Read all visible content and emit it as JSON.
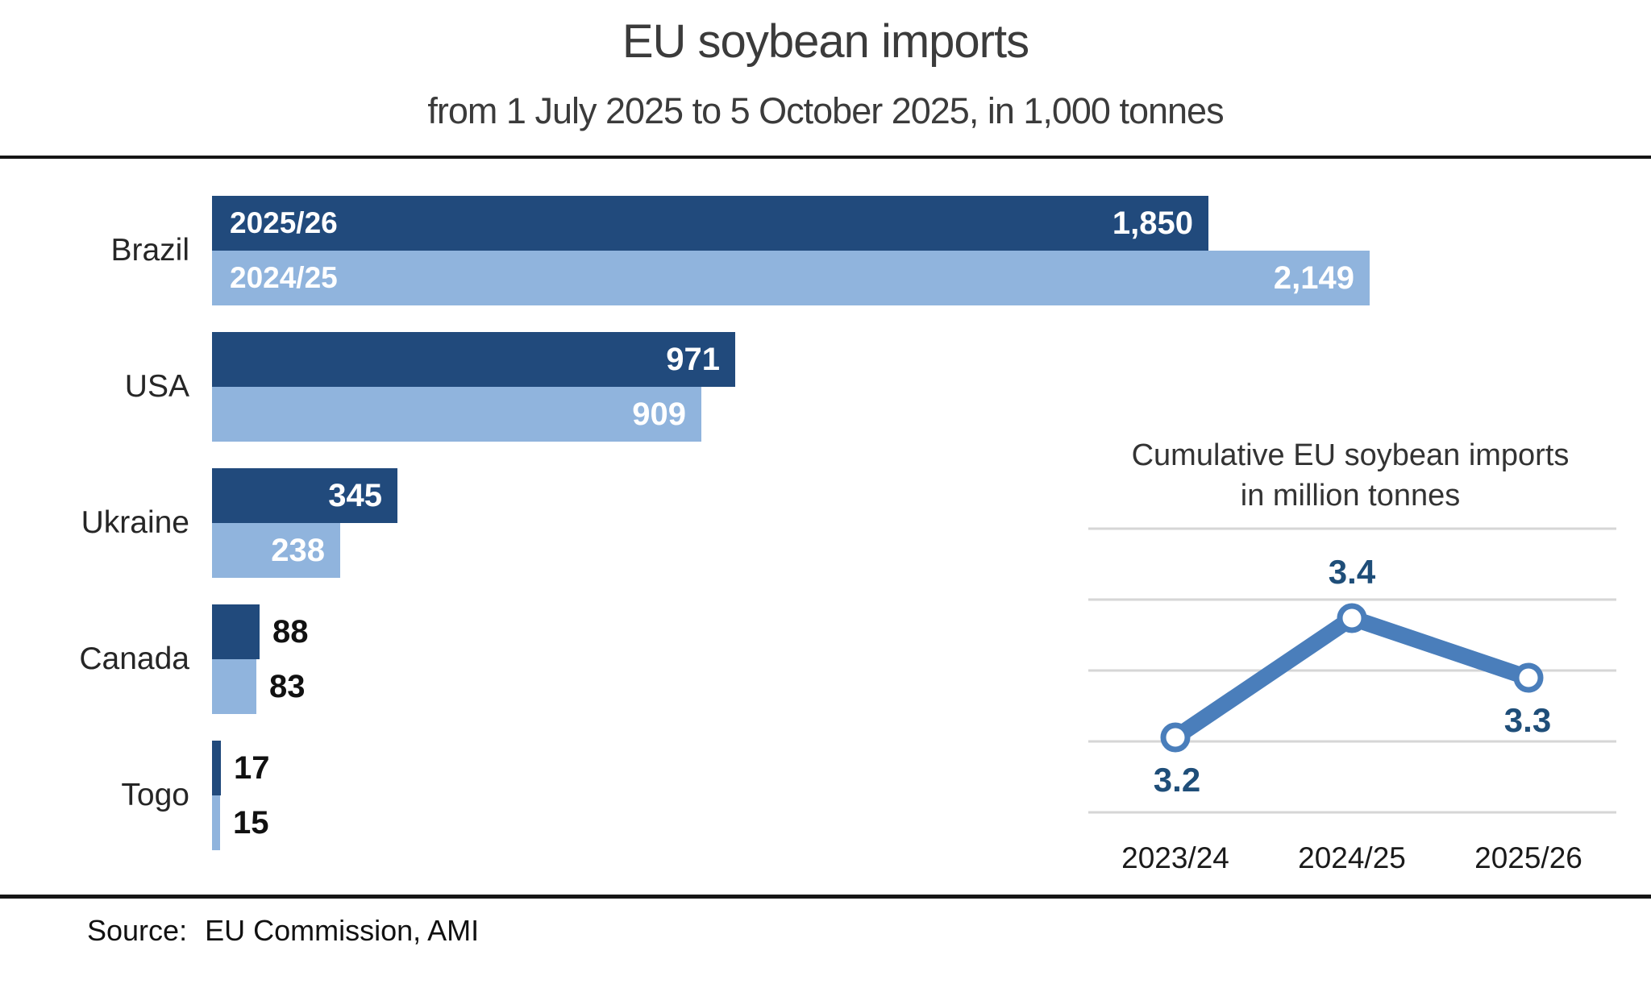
{
  "title": "EU soybean imports",
  "subtitle": "from 1 July 2025 to 5 October 2025, in 1,000 tonnes",
  "source": {
    "label": "Source:",
    "text": "EU Commission, AMI"
  },
  "colors": {
    "bar_dark": "#214A7C",
    "bar_light": "#90B4DD",
    "line_blue": "#4A7EBB",
    "label_navy": "#1F4E79",
    "grid_gray": "#D6D6D6",
    "divider_black": "#161616"
  },
  "chart_data": [
    {
      "type": "bar",
      "orientation": "horizontal",
      "title": "EU soybean imports",
      "subtitle": "from 1 July 2025 to 5 October 2025, in 1,000 tonnes",
      "unit": "1,000 tonnes",
      "categories": [
        "Brazil",
        "USA",
        "Ukraine",
        "Canada",
        "Togo"
      ],
      "series": [
        {
          "name": "2025/26",
          "color": "#214A7C",
          "values": [
            1850,
            971,
            345,
            88,
            17
          ],
          "labels": [
            "1,850",
            "971",
            "345",
            "88",
            "17"
          ]
        },
        {
          "name": "2024/25",
          "color": "#90B4DD",
          "values": [
            2149,
            909,
            238,
            83,
            15
          ],
          "labels": [
            "2,149",
            "909",
            "238",
            "83",
            "15"
          ]
        }
      ],
      "series_names_shown_on": "Brazil",
      "xlim": [
        0,
        2250
      ],
      "value_label_rule": "white inside bar end when value >= 200, black outside otherwise",
      "grid": false
    },
    {
      "type": "line",
      "title": "Cumulative EU soybean imports",
      "subtitle": "in million tonnes",
      "categories": [
        "2023/24",
        "2024/25",
        "2025/26"
      ],
      "values": [
        3.2,
        3.4,
        3.3
      ],
      "labels": [
        "3.2",
        "3.4",
        "3.3"
      ],
      "color": "#4A7EBB",
      "marker": "open-circle",
      "grid": true,
      "gridline_count": 5,
      "ylim": [
        3.05,
        3.55
      ],
      "legend": "none"
    }
  ]
}
